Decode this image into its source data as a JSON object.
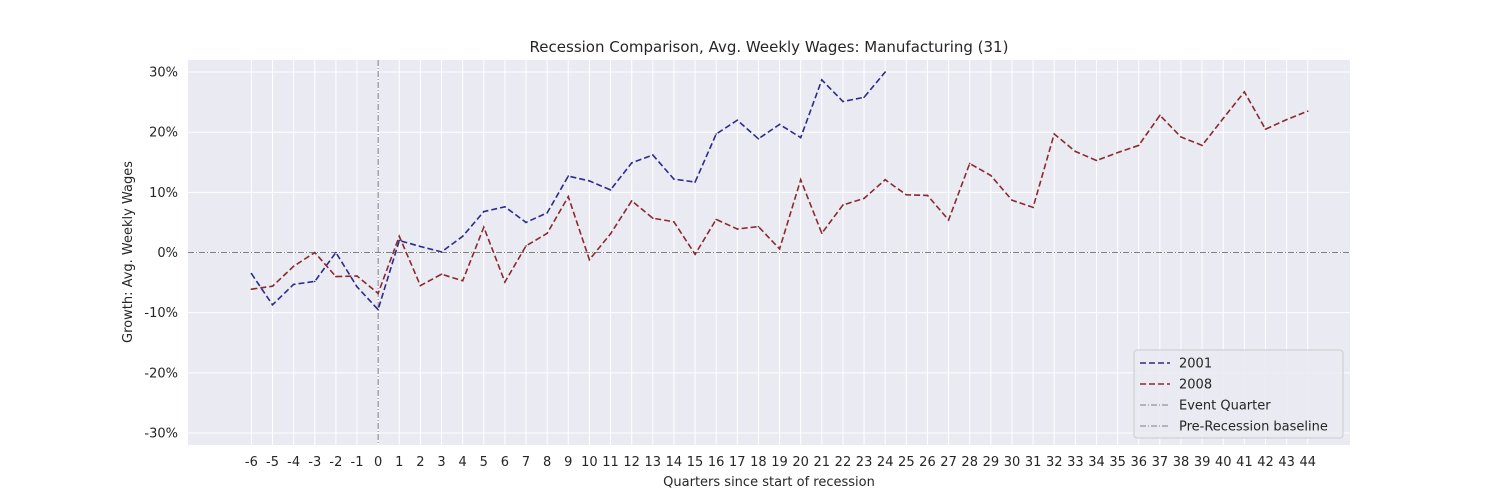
{
  "chart_data": {
    "type": "line",
    "title": "Recession Comparison, Avg. Weekly Wages: Manufacturing (31)",
    "xlabel": "Quarters since start of recession",
    "ylabel": "Growth: Avg. Weekly Wages",
    "xlim": [
      -9,
      46
    ],
    "ylim": [
      -32,
      32
    ],
    "xticks": [
      -6,
      -5,
      -4,
      -3,
      -2,
      -1,
      0,
      1,
      2,
      3,
      4,
      5,
      6,
      7,
      8,
      9,
      10,
      11,
      12,
      13,
      14,
      15,
      16,
      17,
      18,
      19,
      20,
      21,
      22,
      23,
      24,
      25,
      26,
      27,
      28,
      29,
      30,
      31,
      32,
      33,
      34,
      35,
      36,
      37,
      38,
      39,
      40,
      41,
      42,
      43,
      44
    ],
    "yticks": [
      -30,
      -20,
      -10,
      0,
      10,
      20,
      30
    ],
    "ytick_labels": [
      "-30%",
      "-20%",
      "-10%",
      "0%",
      "10%",
      "20%",
      "30%"
    ],
    "grid": true,
    "legend_position": "lower-right",
    "series": [
      {
        "name": "2001",
        "color": "#2b2b8c",
        "style": "dashed",
        "x": [
          -6,
          -5,
          -4,
          -3,
          -2,
          -1,
          0,
          1,
          2,
          3,
          4,
          5,
          6,
          7,
          8,
          9,
          10,
          11,
          12,
          13,
          14,
          15,
          16,
          17,
          18,
          19,
          20,
          21,
          22,
          23,
          24
        ],
        "values": [
          -3.5,
          -8.7,
          -5.3,
          -4.8,
          0.0,
          -5.7,
          -9.5,
          2.0,
          1.0,
          0.1,
          2.7,
          6.8,
          7.6,
          5.0,
          6.6,
          12.7,
          11.9,
          10.4,
          14.9,
          16.2,
          12.2,
          11.7,
          19.7,
          22.0,
          18.9,
          21.3,
          19.1,
          28.7,
          25.1,
          25.8,
          30.0
        ]
      },
      {
        "name": "2008",
        "color": "#8b2a2e",
        "style": "dashed",
        "x": [
          -6,
          -5,
          -4,
          -3,
          -2,
          -1,
          0,
          1,
          2,
          3,
          4,
          5,
          6,
          7,
          8,
          9,
          10,
          11,
          12,
          13,
          14,
          15,
          16,
          17,
          18,
          19,
          20,
          21,
          22,
          23,
          24,
          25,
          26,
          27,
          28,
          29,
          30,
          31,
          32,
          33,
          34,
          35,
          36,
          37,
          38,
          39,
          40,
          41,
          42,
          43,
          44
        ],
        "values": [
          -6.1,
          -5.6,
          -2.3,
          0.0,
          -4.0,
          -3.9,
          -6.8,
          2.7,
          -5.5,
          -3.6,
          -4.7,
          4.2,
          -4.9,
          1.1,
          3.2,
          9.3,
          -1.2,
          3.1,
          8.6,
          5.7,
          5.1,
          -0.3,
          5.5,
          3.9,
          4.3,
          0.6,
          12.1,
          3.2,
          7.9,
          9.0,
          12.1,
          9.6,
          9.5,
          5.4,
          14.8,
          12.8,
          8.7,
          7.5,
          19.7,
          16.8,
          15.3,
          16.6,
          17.8,
          22.8,
          19.2,
          17.8,
          22.3,
          26.7,
          20.5,
          22.1,
          23.5
        ]
      }
    ],
    "event_quarter": {
      "name": "Event Quarter",
      "x": 0,
      "color": "#808080"
    },
    "baseline": {
      "name": "Pre-Recession baseline",
      "y": 0,
      "color": "#808080"
    }
  }
}
